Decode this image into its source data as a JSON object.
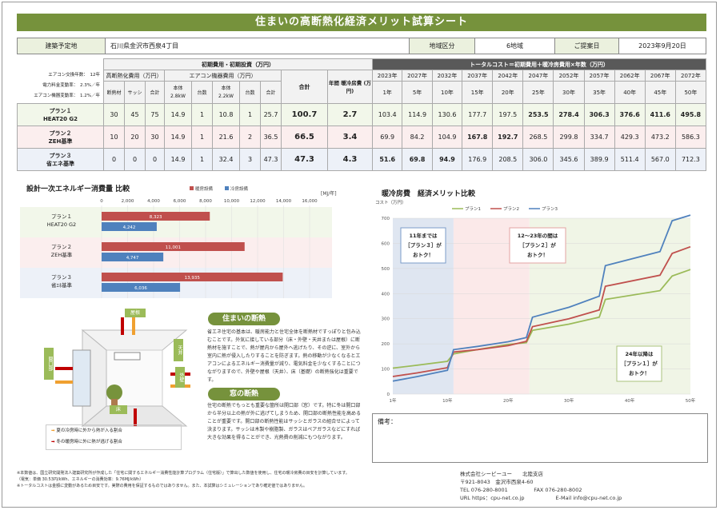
{
  "title": "住まいの高断熱化経済メリット試算シート",
  "info": {
    "site_label": "建築予定地",
    "site_value": "石川県金沢市西泉4丁目",
    "region_label": "地域区分",
    "region_value": "6地域",
    "date_label": "ご提案日",
    "date_value": "2023年9月20日"
  },
  "notes": {
    "ac_replace": "エアコン交換年数：　12年",
    "elec_rate": "電力料金変動率：　2.3%／年",
    "ac_eff": "エアコン機器変動率：　1.2%／年"
  },
  "cost_table": {
    "init_header": "初期費用・初期投資（万円）",
    "insul_header": "高断熱化費用（万円）",
    "ac_header": "エアコン機器費用（万円）",
    "total_label": "合計",
    "annual_label": "年間 暖冷房費 (万円)",
    "total_cost_header": "トータルコスト＝初期費用＋暖冷房費用×年数（万円）",
    "insul_cols": [
      "断熱材",
      "サッシ",
      "合計"
    ],
    "ac_cols": [
      "本体\n2.8kW",
      "台数",
      "本体\n2.2kW",
      "台数",
      "合計"
    ],
    "years": [
      "2023年",
      "2027年",
      "2032年",
      "2037年",
      "2042年",
      "2047年",
      "2052年",
      "2057年",
      "2062年",
      "2067年",
      "2072年"
    ],
    "year_nums": [
      "1年",
      "5年",
      "10年",
      "15年",
      "20年",
      "25年",
      "30年",
      "35年",
      "40年",
      "45年",
      "50年"
    ],
    "rows": [
      {
        "name1": "プラン１",
        "name2": "HEAT20 G2",
        "insul": [
          "30",
          "45",
          "75"
        ],
        "ac": [
          "14.9",
          "1",
          "10.8",
          "1",
          "25.7"
        ],
        "total": "100.7",
        "annual": "2.7",
        "tc": [
          "103.4",
          "114.9",
          "130.6",
          "177.7",
          "197.5",
          "253.5",
          "278.4",
          "306.3",
          "376.6",
          "411.6",
          "495.8"
        ]
      },
      {
        "name1": "プラン２",
        "name2": "ZEH基準",
        "insul": [
          "10",
          "20",
          "30"
        ],
        "ac": [
          "14.9",
          "1",
          "21.6",
          "2",
          "36.5"
        ],
        "total": "66.5",
        "annual": "3.4",
        "tc": [
          "69.9",
          "84.2",
          "104.9",
          "167.8",
          "192.7",
          "268.5",
          "299.8",
          "334.7",
          "429.3",
          "473.2",
          "586.3"
        ]
      },
      {
        "name1": "プラン３",
        "name2": "省エネ基準",
        "insul": [
          "0",
          "0",
          "0"
        ],
        "ac": [
          "14.9",
          "1",
          "32.4",
          "3",
          "47.3"
        ],
        "total": "47.3",
        "annual": "4.3",
        "tc": [
          "51.6",
          "69.8",
          "94.9",
          "176.9",
          "208.5",
          "306.0",
          "345.6",
          "389.9",
          "511.4",
          "567.0",
          "712.3"
        ]
      }
    ]
  },
  "energy_chart": {
    "title": "設計一次エネルギー消費量 比較",
    "unit": "[MJ/年]",
    "legend": [
      "暖房設備",
      "冷房設備"
    ],
    "ticks": [
      "0",
      "2,000",
      "4,000",
      "6,000",
      "8,000",
      "10,000",
      "12,000",
      "14,000",
      "16,000"
    ]
  },
  "cost_chart": {
    "title": "暖冷房費　経済メリット比較",
    "y_unit": "コスト（万円）",
    "y_ticks": [
      "0",
      "100",
      "200",
      "300",
      "400",
      "500",
      "600",
      "700"
    ],
    "x_ticks": [
      "1年",
      "10年",
      "20年",
      "30年",
      "40年",
      "50年"
    ],
    "legend": [
      "プラン1",
      "プラン2",
      "プラン3"
    ],
    "ann1": [
      "11年までは",
      "［プラン３］が",
      "おトク！"
    ],
    "ann2": [
      "12～23年の間は",
      "［プラン２］が",
      "おトク！"
    ],
    "ann3": [
      "24年以降は",
      "［プラン１］が",
      "おトク！"
    ]
  },
  "chart_data": [
    {
      "type": "bar",
      "title": "設計一次エネルギー消費量 比較",
      "categories": [
        "プラン１ HEAT20 G2",
        "プラン２ ZEH基準",
        "プラン３ 省エネ基準"
      ],
      "series": [
        {
          "name": "暖房設備",
          "values": [
            8323,
            11001,
            13935
          ]
        },
        {
          "name": "冷房設備",
          "values": [
            4242,
            4747,
            6036
          ]
        }
      ],
      "xlim": [
        0,
        16000
      ],
      "colors": [
        "#c0504d",
        "#4f81bd"
      ]
    },
    {
      "type": "line",
      "title": "暖冷房費　経済メリット比較",
      "ylabel": "コスト（万円）",
      "ylim": [
        0,
        700
      ],
      "xlim": [
        1,
        50
      ],
      "series": [
        {
          "name": "プラン1",
          "color": "#9bbb59",
          "points": [
            [
              1,
              103.4
            ],
            [
              5,
              114.9
            ],
            [
              10,
              130.6
            ],
            [
              11,
              160
            ],
            [
              15,
              177.7
            ],
            [
              20,
              197.5
            ],
            [
              23,
              205
            ],
            [
              24,
              253.5
            ],
            [
              30,
              278.4
            ],
            [
              35,
              306.3
            ],
            [
              36,
              376.6
            ],
            [
              45,
              411.6
            ],
            [
              47,
              470
            ],
            [
              50,
              495.8
            ]
          ]
        },
        {
          "name": "プラン2",
          "color": "#c0504d",
          "points": [
            [
              1,
              69.9
            ],
            [
              5,
              84.2
            ],
            [
              10,
              104.9
            ],
            [
              11,
              167.8
            ],
            [
              15,
              177
            ],
            [
              20,
              192.7
            ],
            [
              23,
              210
            ],
            [
              24,
              268.5
            ],
            [
              30,
              299.8
            ],
            [
              35,
              334.7
            ],
            [
              36,
              429.3
            ],
            [
              45,
              473.2
            ],
            [
              47,
              560
            ],
            [
              50,
              586.3
            ]
          ]
        },
        {
          "name": "プラン3",
          "color": "#4f81bd",
          "points": [
            [
              1,
              51.6
            ],
            [
              5,
              69.8
            ],
            [
              10,
              94.9
            ],
            [
              11,
              176.9
            ],
            [
              15,
              190
            ],
            [
              20,
              208.5
            ],
            [
              23,
              225
            ],
            [
              24,
              306
            ],
            [
              30,
              345.6
            ],
            [
              35,
              389.9
            ],
            [
              36,
              511.4
            ],
            [
              45,
              567
            ],
            [
              47,
              690
            ],
            [
              50,
              712.3
            ]
          ]
        }
      ]
    }
  ],
  "diagram": {
    "roof": "屋根",
    "ceiling": "天井",
    "wall": "外壁",
    "opening": "開口部",
    "floor": "床",
    "legend1": "夏の冷房時に外から熱が入る割合",
    "legend2": "冬の暖房時に外に熱が逃げる割合"
  },
  "explain": {
    "h1": "住まいの断熱",
    "p1": "省エネ住宅の基本は、暖房能力と住宅全体を断熱材ですっぽりと包み込むことです。外気に接している部分（床・外壁・天井または屋根）に断熱材を施すことで、熱が屋内から屋外へ逃げたり、その逆に、室外から室内に熱が侵入したりすることを防ぎます。熱の移動が少なくなるとエアコンによるエネルギー消費量が減り、電気料金を少なくすることにつながりますので、外壁や屋根（天井）、床（基礎）の断熱強化は重要です。",
    "h2": "窓の断熱",
    "p2": "住宅の断熱でもっとも重要な箇所は開口部（窓）です。特に冬は開口部から半分以上の熱が外に逃げてしまうため、開口部の断熱性能を高めることが重要です。開口部の断熱性能はサッシとガラスの組合せによって決まります。サッシは木製や樹脂製、ガラスはペアガラスなどにすれば大きな効果を得ることができ、光熱費の削減にもつながります。"
  },
  "remarks_label": "備考：",
  "footnotes": [
    "※本数値は、国立研究開発法人建築研究所が作成した「住宅に関するエネルギー消費性能計算プログラム（住宅版）」で算出した数値を使用し、住宅の暖冷房費の目安を計算しています。",
    "（電気：単価 30.53円/kWh、エネルギーの消費効率：9.76MJ/kWh）",
    "※トータルコストは金額に変動があるため目安です。実際の費用を保証するものではありません。また、本試算はシミュレーションであり確定値ではありません。"
  ],
  "company": {
    "name": "株式会社シーピーユー　　北陸支店",
    "zip": "〒921-8043　金沢市西泉4-60",
    "tel": "TEL 076-280-8001　　　　　FAX 076-280-8002",
    "url": "URL https：cpu-net.co.jp　　　　　　E-Mail info@cpu-net.co.jp"
  }
}
